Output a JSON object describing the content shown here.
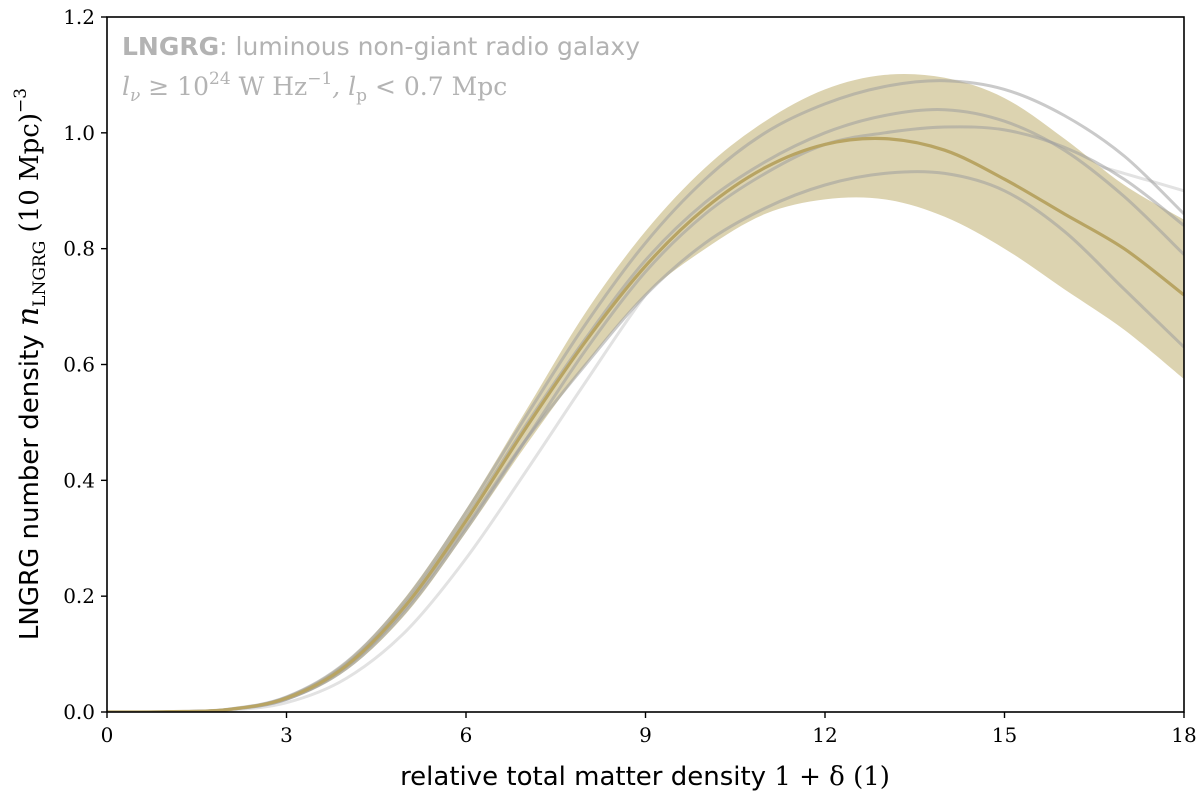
{
  "chart_data": {
    "type": "line",
    "xlabel_text": "relative total matter density",
    "xlabel_math": "1 + δ (1)",
    "ylabel_text": "LNGRG number density",
    "ylabel_math": "n",
    "ylabel_sub": "LNGRG",
    "ylabel_unit": "(10 Mpc)",
    "ylabel_unit_exp": "−3",
    "xlim": [
      0,
      18
    ],
    "ylim": [
      0,
      1.2
    ],
    "xticks": [
      0,
      3,
      6,
      9,
      12,
      15,
      18
    ],
    "yticks": [
      0.0,
      0.2,
      0.4,
      0.6,
      0.8,
      1.0,
      1.2
    ],
    "xtick_labels": [
      "0",
      "3",
      "6",
      "9",
      "12",
      "15",
      "18"
    ],
    "ytick_labels": [
      "0.0",
      "0.2",
      "0.4",
      "0.6",
      "0.8",
      "1.0",
      "1.2"
    ],
    "annotation": {
      "bold": "LNGRG",
      "rest": ": luminous non-giant radio galaxy",
      "line2_a": "l",
      "line2_a_sub": "ν",
      "line2_b": " ≥ 10",
      "line2_b_sup": "24",
      "line2_c": " W Hz",
      "line2_c_sup": "−1",
      "line2_d": ", l",
      "line2_d_sub": "p",
      "line2_e": " < 0.7 Mpc"
    },
    "colors": {
      "band": "#dcd3b0",
      "mean": "#b8a463",
      "samples": "#9f9f9f",
      "outlier": "#e2e2e2"
    },
    "mean": {
      "x": [
        0,
        1,
        2,
        3,
        4,
        5,
        6,
        7,
        8,
        9,
        10,
        11,
        12,
        13,
        14,
        15,
        16,
        17,
        18
      ],
      "y": [
        0,
        0.0005,
        0.004,
        0.024,
        0.08,
        0.185,
        0.33,
        0.49,
        0.64,
        0.77,
        0.87,
        0.94,
        0.98,
        0.99,
        0.97,
        0.92,
        0.86,
        0.8,
        0.72
      ]
    },
    "band": {
      "x": [
        0,
        1,
        2,
        3,
        4,
        5,
        6,
        7,
        8,
        9,
        10,
        11,
        12,
        13,
        14,
        15,
        16,
        17,
        18
      ],
      "lower": [
        0,
        0.0004,
        0.0035,
        0.02,
        0.072,
        0.17,
        0.31,
        0.46,
        0.6,
        0.72,
        0.8,
        0.86,
        0.885,
        0.885,
        0.855,
        0.8,
        0.73,
        0.66,
        0.575
      ],
      "upper": [
        0,
        0.0006,
        0.0045,
        0.028,
        0.088,
        0.2,
        0.35,
        0.52,
        0.69,
        0.83,
        0.94,
        1.02,
        1.075,
        1.1,
        1.095,
        1.06,
        0.99,
        0.91,
        0.85
      ]
    },
    "samples": [
      {
        "x": [
          0,
          1,
          2,
          3,
          4,
          5,
          6,
          7,
          8,
          9,
          10,
          11,
          12,
          13,
          14,
          15,
          16,
          17,
          18
        ],
        "y": [
          0,
          0.0004,
          0.004,
          0.022,
          0.078,
          0.18,
          0.32,
          0.47,
          0.6,
          0.72,
          0.81,
          0.87,
          0.91,
          0.93,
          0.93,
          0.9,
          0.83,
          0.73,
          0.63
        ]
      },
      {
        "x": [
          0,
          1,
          2,
          3,
          4,
          5,
          6,
          7,
          8,
          9,
          10,
          11,
          12,
          13,
          14,
          15,
          16,
          17,
          18
        ],
        "y": [
          0,
          0.0005,
          0.0045,
          0.026,
          0.086,
          0.195,
          0.345,
          0.51,
          0.67,
          0.81,
          0.92,
          1.0,
          1.05,
          1.08,
          1.09,
          1.075,
          1.03,
          0.96,
          0.86
        ]
      },
      {
        "x": [
          0,
          1,
          2,
          3,
          4,
          5,
          6,
          7,
          8,
          9,
          10,
          11,
          12,
          13,
          14,
          15,
          16,
          17,
          18
        ],
        "y": [
          0,
          0.0005,
          0.0042,
          0.025,
          0.082,
          0.188,
          0.335,
          0.495,
          0.645,
          0.78,
          0.88,
          0.95,
          1.0,
          1.03,
          1.04,
          1.02,
          0.97,
          0.89,
          0.79
        ]
      },
      {
        "x": [
          0,
          1,
          2,
          3,
          4,
          5,
          6,
          7,
          8,
          9,
          10,
          11,
          12,
          13,
          14,
          15,
          16,
          17,
          18
        ],
        "y": [
          0,
          0.0004,
          0.0038,
          0.022,
          0.075,
          0.175,
          0.315,
          0.47,
          0.625,
          0.76,
          0.86,
          0.93,
          0.98,
          1.0,
          1.01,
          1.005,
          0.975,
          0.92,
          0.84
        ]
      }
    ],
    "outlier": {
      "x": [
        0,
        1,
        2,
        3,
        4,
        5,
        6,
        7,
        8,
        9,
        10,
        11,
        12,
        13,
        14,
        15,
        16,
        17,
        18
      ],
      "y": [
        0,
        0.0003,
        0.003,
        0.016,
        0.058,
        0.14,
        0.265,
        0.415,
        0.57,
        0.72,
        0.84,
        0.93,
        0.99,
        1.02,
        1.02,
        1.0,
        0.96,
        0.93,
        0.9
      ]
    }
  }
}
